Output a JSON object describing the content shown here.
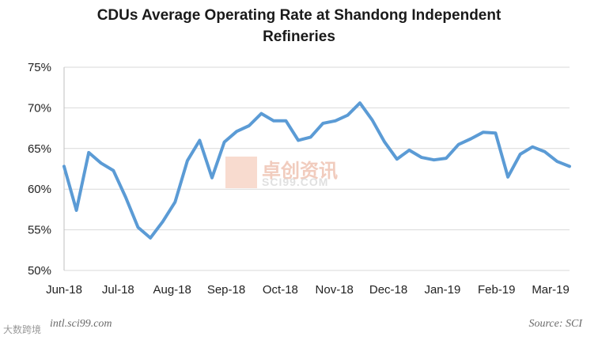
{
  "chart_data": {
    "type": "line",
    "title_line1": "CDUs Average Operating Rate at Shandong Independent",
    "title_line2": "Refineries",
    "xlabel": "",
    "ylabel": "",
    "ylim": [
      50,
      75
    ],
    "yticks": [
      "50%",
      "55%",
      "60%",
      "65%",
      "70%",
      "75%"
    ],
    "ytick_values": [
      50,
      55,
      60,
      65,
      70,
      75
    ],
    "xticks": [
      "Jun-18",
      "Jul-18",
      "Aug-18",
      "Sep-18",
      "Oct-18",
      "Nov-18",
      "Dec-18",
      "Jan-19",
      "Feb-19",
      "Mar-19"
    ],
    "grid": true,
    "line_color": "#5b9bd5",
    "series": [
      {
        "values": [
          62.8,
          57.4,
          64.5,
          63.2,
          62.3,
          59.0,
          55.3,
          54.0,
          56.0,
          58.4,
          63.5,
          66.0,
          61.4,
          65.8,
          67.1,
          67.8,
          69.3,
          68.4,
          68.4,
          66.0,
          66.4,
          68.1,
          68.4,
          69.1,
          70.6,
          68.5,
          65.8,
          63.7,
          64.8,
          63.9,
          63.6,
          63.8,
          65.5,
          66.2,
          67.0,
          66.9,
          61.5,
          64.3,
          65.2,
          64.6,
          63.4,
          62.8
        ]
      }
    ]
  },
  "footer": {
    "left": "intl.sci99.com",
    "right": "Source: SCI"
  },
  "watermark": {
    "cn": "卓创资讯",
    "en": "SCI99.COM",
    "corner": "大数跨境"
  }
}
